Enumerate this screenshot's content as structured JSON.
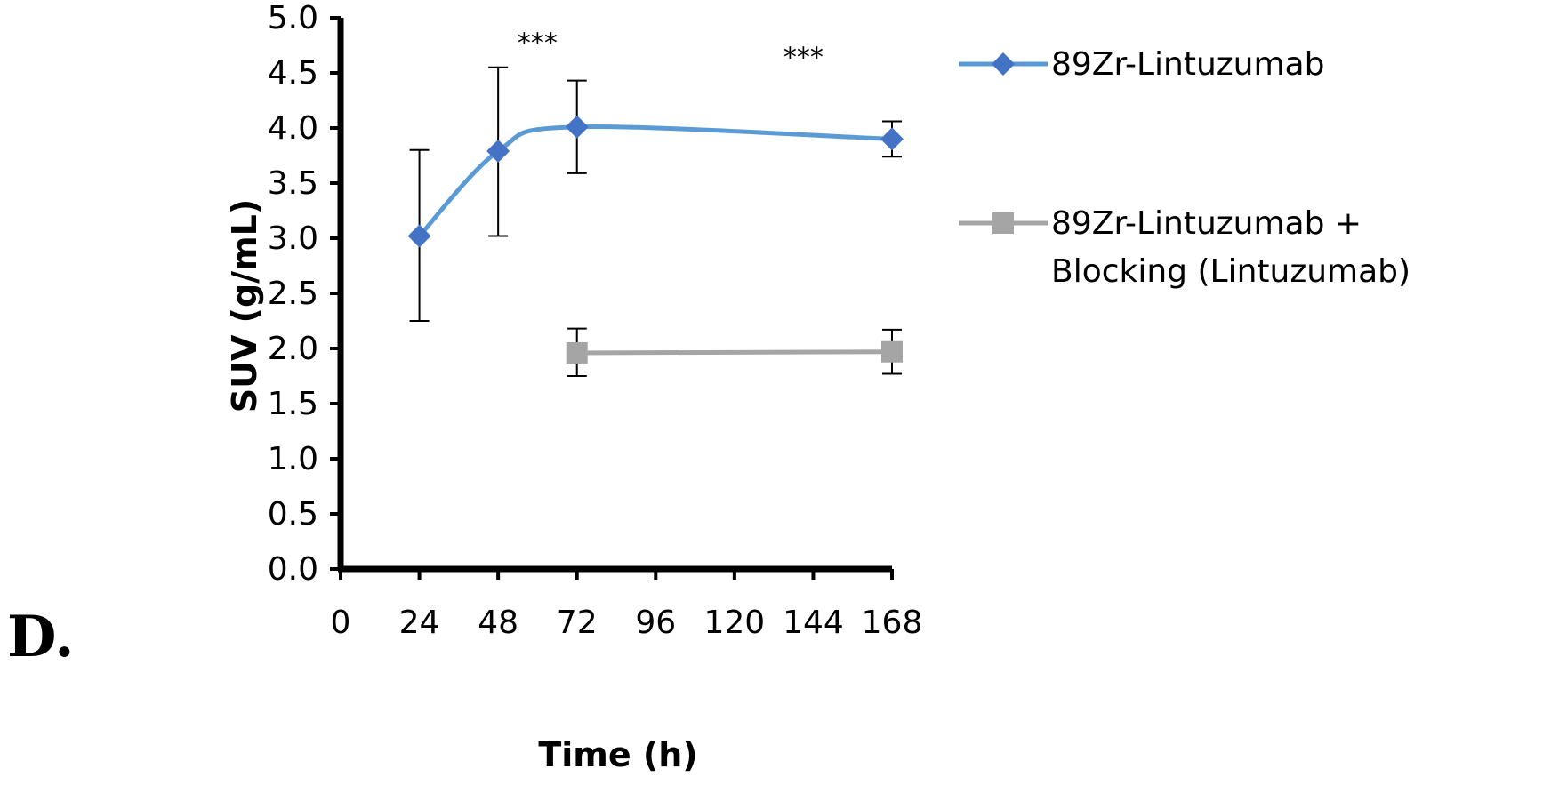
{
  "panel_label": "D.",
  "chart_data": {
    "type": "line",
    "title": "",
    "xlabel": "Time (h)",
    "ylabel": "SUV (g/mL)",
    "xlim": [
      0,
      168
    ],
    "ylim": [
      0,
      5
    ],
    "x_ticks": [
      "0",
      "24",
      "48",
      "72",
      "96",
      "120",
      "144",
      "168"
    ],
    "y_ticks": [
      "0.0",
      "0.5",
      "1.0",
      "1.5",
      "2.0",
      "2.5",
      "3.0",
      "3.5",
      "4.0",
      "4.5",
      "5.0"
    ],
    "grid": false,
    "legend_position": "right",
    "series": [
      {
        "name": "89Zr-Lintuzumab",
        "legend_lines": [
          "89Zr-Lintuzumab"
        ],
        "color": "#5b9bd5",
        "marker_color": "#4472c4",
        "marker": "diamond",
        "smooth": true,
        "x": [
          24,
          48,
          72,
          168
        ],
        "y": [
          3.02,
          3.79,
          4.01,
          3.9
        ],
        "err_low": [
          2.25,
          3.02,
          3.59,
          3.74
        ],
        "err_high": [
          3.8,
          4.55,
          4.43,
          4.06
        ]
      },
      {
        "name": "89Zr-Lintuzumab + Blocking (Lintuzumab)",
        "legend_lines": [
          "89Zr-Lintuzumab +",
          "Blocking (Lintuzumab)"
        ],
        "color": "#a5a5a5",
        "marker_color": "#a5a5a5",
        "marker": "square",
        "smooth": false,
        "x": [
          72,
          168
        ],
        "y": [
          1.96,
          1.97
        ],
        "err_low": [
          1.75,
          1.77
        ],
        "err_high": [
          2.18,
          2.17
        ]
      }
    ],
    "annotations": [
      {
        "text": "***",
        "x": 60,
        "y": 4.9
      },
      {
        "text": "***",
        "x": 141,
        "y": 4.77
      }
    ]
  }
}
